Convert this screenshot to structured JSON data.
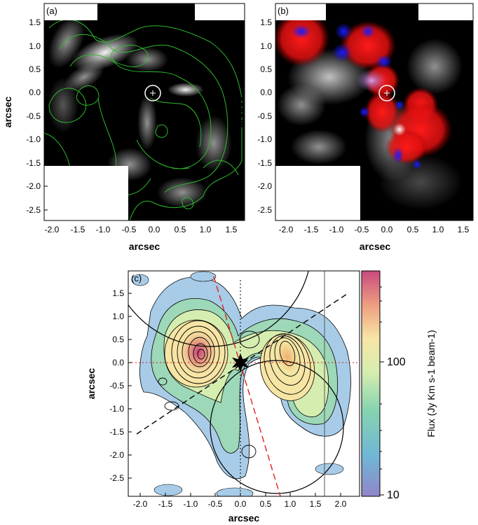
{
  "panels": {
    "a": {
      "label": "(a)",
      "xlabel": "arcsec",
      "ylabel": "arcsec",
      "xticks": [
        "-2.0",
        "-1.5",
        "-1.0",
        "-0.5",
        "0.0",
        "0.5",
        "1.0",
        "1.5"
      ],
      "yticks": [
        "1.5",
        "1.0",
        "0.5",
        "0.0",
        "-0.5",
        "-1.0",
        "-1.5",
        "-2.0",
        "-2.5"
      ],
      "contour_color": "#2eb82e"
    },
    "b": {
      "label": "(b)",
      "xlabel": "arcsec",
      "ylabel": "arcsec",
      "xticks": [
        "-2.0",
        "-1.5",
        "-1.0",
        "-0.5",
        "0.0",
        "0.5",
        "1.0",
        "1.5"
      ],
      "yticks": [
        "1.5",
        "1.0",
        "0.5",
        "0.0",
        "-0.5",
        "-1.0",
        "-1.5",
        "-2.0",
        "-2.5"
      ],
      "red_color": "#e8141a",
      "blue_color": "#1a1ae8"
    },
    "c": {
      "label": "(c)",
      "xlabel": "arcsec",
      "ylabel": "arcsec",
      "xticks": [
        "-2.0",
        "-1.5",
        "-1.0",
        "-0.5",
        "0.0",
        "0.5",
        "1.0",
        "1.5",
        "2.0"
      ],
      "yticks": [
        "1.5",
        "1.0",
        "0.5",
        "0.0",
        "-0.5",
        "-1.0",
        "-1.5",
        "-2.0",
        "-2.5"
      ],
      "colorbar_label": "Flux (Jy Km s-1 beam-1)",
      "colorbar_ticks": [
        "100",
        "10"
      ],
      "dashed_line_color": "#e01e1e"
    }
  }
}
